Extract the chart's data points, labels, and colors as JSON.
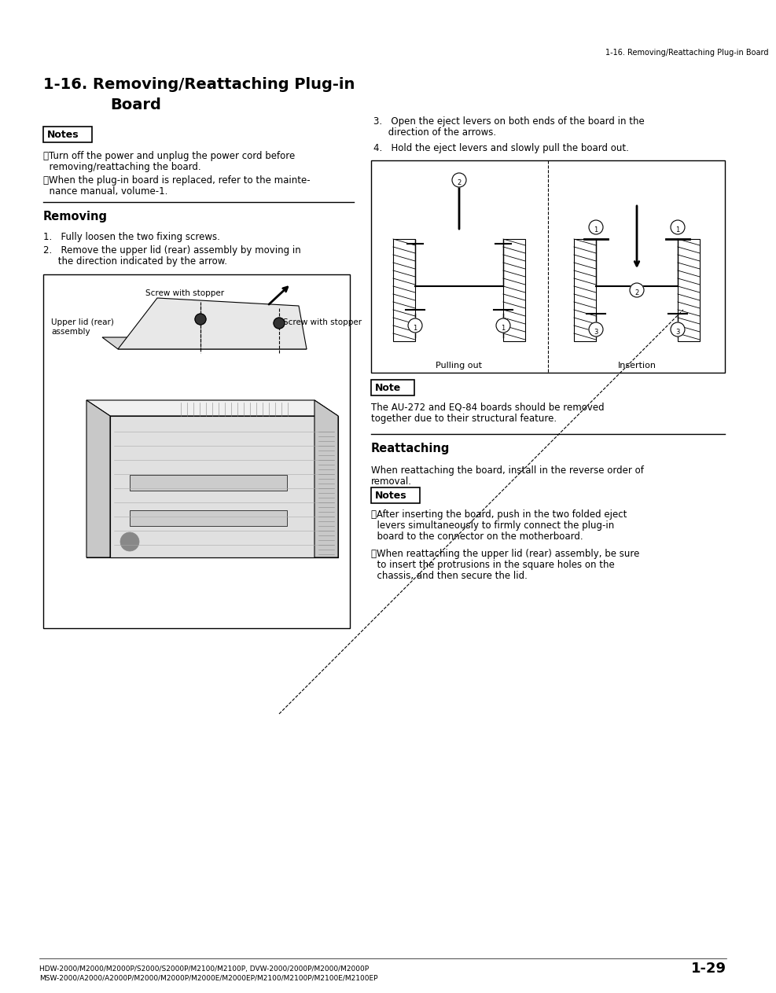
{
  "page_title_line1": "1-16. Removing/Reattaching Plug-in",
  "page_title_line2": "Board",
  "header_text": "1-16. Removing/Reattaching Plug-in Board",
  "background_color": "#ffffff",
  "text_color": "#000000",
  "page_number": "1-29",
  "footer_line1": "HDW-2000/M2000/M2000P/S2000/S2000P/M2100/M2100P, DVW-2000/2000P/M2000/M2000P",
  "footer_line2": "MSW-2000/A2000/A2000P/M2000/M2000P/M2000E/M2000EP/M2100/M2100P/M2100E/M2100EP",
  "notes_label": "Notes",
  "note_label": "Note",
  "removing_label": "Removing",
  "reattaching_label": "Reattaching",
  "note1_line1": "・Turn off the power and unplug the power cord before",
  "note1_line2": "  removing/reattaching the board.",
  "note2_line1": "・When the plug-in board is replaced, refer to the mainte-",
  "note2_line2": "  nance manual, volume-1.",
  "step1": "1.   Fully loosen the two fixing screws.",
  "step2_line1": "2.   Remove the upper lid (rear) assembly by moving in",
  "step2_line2": "     the direction indicated by the arrow.",
  "step3_line1": "3.   Open the eject levers on both ends of the board in the",
  "step3_line2": "     direction of the arrows.",
  "step4": "4.   Hold the eject levers and slowly pull the board out.",
  "label_screw1": "Screw with stopper",
  "label_upper_lid": "Upper lid (rear)\nassembly",
  "label_screw2": "Screw with stopper",
  "label_pulling": "Pulling out",
  "label_insertion": "Insertion",
  "note_right_text": "The AU-272 and EQ-84 boards should be removed\ntogether due to their structural feature.",
  "reattach_text1": "When reattaching the board, install in the reverse order of",
  "reattach_text2": "removal.",
  "bullet1_line1": "・After inserting the board, push in the two folded eject",
  "bullet1_line2": "  levers simultaneously to firmly connect the plug-in",
  "bullet1_line3": "  board to the connector on the motherboard.",
  "bullet2_line1": "・When reattaching the upper lid (rear) assembly, be sure",
  "bullet2_line2": "  to insert the protrusions in the square holes on the",
  "bullet2_line3": "  chassis, and then secure the lid."
}
